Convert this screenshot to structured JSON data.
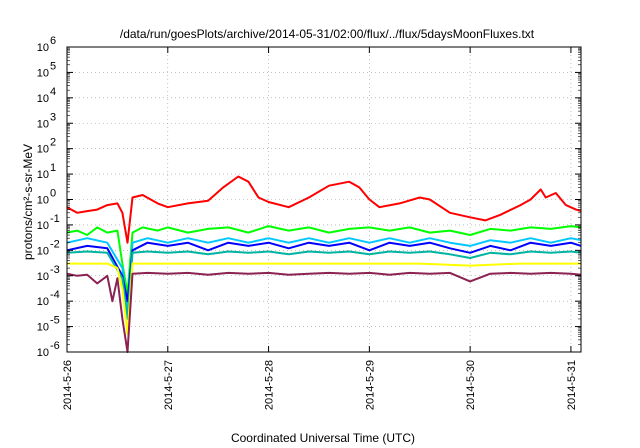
{
  "chart_data": {
    "type": "line",
    "title": "/data/run/goesPlots/archive/2014-05-31/02:00/flux/../flux/5daysMoonFluxes.txt",
    "xlabel": "Coordinated Universal Time (UTC)",
    "ylabel": "protons/cm²-s-sr-MeV",
    "yscale": "log",
    "ylim": [
      1e-06,
      1000000.0
    ],
    "xlim": [
      0,
      5.1
    ],
    "grid": true,
    "x_ticks": [
      {
        "value": 0,
        "label": "2014-5-26"
      },
      {
        "value": 1,
        "label": "2014-5-27"
      },
      {
        "value": 2,
        "label": "2014-5-28"
      },
      {
        "value": 3,
        "label": "2014-5-29"
      },
      {
        "value": 4,
        "label": "2014-5-30"
      },
      {
        "value": 5,
        "label": "2014-5-31"
      }
    ],
    "y_ticks": [
      {
        "value": -6,
        "label": "10",
        "exp": "-6"
      },
      {
        "value": -5,
        "label": "10",
        "exp": "-5"
      },
      {
        "value": -4,
        "label": "10",
        "exp": "-4"
      },
      {
        "value": -3,
        "label": "10",
        "exp": "-3"
      },
      {
        "value": -2,
        "label": "10",
        "exp": "-2"
      },
      {
        "value": -1,
        "label": "10",
        "exp": "-1"
      },
      {
        "value": 0,
        "label": "10",
        "exp": "0"
      },
      {
        "value": 1,
        "label": "10",
        "exp": "1"
      },
      {
        "value": 2,
        "label": "10",
        "exp": "2"
      },
      {
        "value": 3,
        "label": "10",
        "exp": "3"
      },
      {
        "value": 4,
        "label": "10",
        "exp": "4"
      },
      {
        "value": 5,
        "label": "10",
        "exp": "5"
      },
      {
        "value": 6,
        "label": "10",
        "exp": "6"
      }
    ],
    "series": [
      {
        "color": "#ff0000",
        "values": [
          [
            0,
            0.5
          ],
          [
            0.1,
            0.3
          ],
          [
            0.2,
            0.35
          ],
          [
            0.3,
            0.4
          ],
          [
            0.4,
            0.6
          ],
          [
            0.5,
            0.7
          ],
          [
            0.55,
            0.3
          ],
          [
            0.6,
            0.02
          ],
          [
            0.65,
            1.2
          ],
          [
            0.75,
            1.5
          ],
          [
            0.9,
            0.7
          ],
          [
            1.0,
            0.5
          ],
          [
            1.2,
            0.7
          ],
          [
            1.4,
            0.9
          ],
          [
            1.55,
            3.0
          ],
          [
            1.7,
            8.0
          ],
          [
            1.8,
            5.0
          ],
          [
            1.9,
            1.2
          ],
          [
            2.0,
            0.8
          ],
          [
            2.2,
            0.5
          ],
          [
            2.4,
            1.2
          ],
          [
            2.6,
            3.5
          ],
          [
            2.8,
            5.0
          ],
          [
            2.9,
            3.0
          ],
          [
            3.0,
            1.0
          ],
          [
            3.1,
            0.5
          ],
          [
            3.3,
            0.7
          ],
          [
            3.5,
            1.2
          ],
          [
            3.6,
            1.0
          ],
          [
            3.8,
            0.3
          ],
          [
            4.0,
            0.2
          ],
          [
            4.15,
            0.15
          ],
          [
            4.3,
            0.25
          ],
          [
            4.5,
            0.6
          ],
          [
            4.6,
            1.0
          ],
          [
            4.7,
            2.5
          ],
          [
            4.75,
            1.2
          ],
          [
            4.85,
            1.8
          ],
          [
            4.95,
            0.6
          ],
          [
            5.05,
            0.4
          ],
          [
            5.1,
            0.35
          ]
        ]
      },
      {
        "color": "#00ff00",
        "values": [
          [
            0,
            0.05
          ],
          [
            0.1,
            0.06
          ],
          [
            0.2,
            0.04
          ],
          [
            0.3,
            0.08
          ],
          [
            0.4,
            0.05
          ],
          [
            0.5,
            0.06
          ],
          [
            0.55,
            0.003
          ],
          [
            0.6,
            0.0002
          ],
          [
            0.65,
            0.05
          ],
          [
            0.75,
            0.08
          ],
          [
            0.9,
            0.06
          ],
          [
            1.0,
            0.08
          ],
          [
            1.2,
            0.05
          ],
          [
            1.4,
            0.07
          ],
          [
            1.6,
            0.08
          ],
          [
            1.8,
            0.05
          ],
          [
            2.0,
            0.09
          ],
          [
            2.2,
            0.06
          ],
          [
            2.4,
            0.08
          ],
          [
            2.6,
            0.05
          ],
          [
            2.8,
            0.07
          ],
          [
            3.0,
            0.08
          ],
          [
            3.2,
            0.06
          ],
          [
            3.4,
            0.08
          ],
          [
            3.6,
            0.05
          ],
          [
            3.8,
            0.06
          ],
          [
            4.0,
            0.04
          ],
          [
            4.2,
            0.07
          ],
          [
            4.4,
            0.06
          ],
          [
            4.6,
            0.08
          ],
          [
            4.8,
            0.07
          ],
          [
            5.0,
            0.09
          ],
          [
            5.1,
            0.08
          ]
        ]
      },
      {
        "color": "#00c8ff",
        "values": [
          [
            0,
            0.02
          ],
          [
            0.2,
            0.03
          ],
          [
            0.4,
            0.02
          ],
          [
            0.55,
            0.002
          ],
          [
            0.6,
            5e-05
          ],
          [
            0.65,
            0.02
          ],
          [
            0.8,
            0.03
          ],
          [
            1.0,
            0.02
          ],
          [
            1.2,
            0.03
          ],
          [
            1.4,
            0.02
          ],
          [
            1.6,
            0.03
          ],
          [
            1.8,
            0.02
          ],
          [
            2.0,
            0.03
          ],
          [
            2.2,
            0.02
          ],
          [
            2.4,
            0.03
          ],
          [
            2.6,
            0.02
          ],
          [
            2.8,
            0.03
          ],
          [
            3.0,
            0.02
          ],
          [
            3.2,
            0.03
          ],
          [
            3.4,
            0.02
          ],
          [
            3.6,
            0.03
          ],
          [
            3.8,
            0.02
          ],
          [
            4.0,
            0.015
          ],
          [
            4.2,
            0.025
          ],
          [
            4.4,
            0.02
          ],
          [
            4.6,
            0.03
          ],
          [
            4.8,
            0.02
          ],
          [
            5.0,
            0.03
          ],
          [
            5.1,
            0.025
          ]
        ]
      },
      {
        "color": "#0000ff",
        "values": [
          [
            0,
            0.01
          ],
          [
            0.2,
            0.015
          ],
          [
            0.4,
            0.012
          ],
          [
            0.55,
            0.001
          ],
          [
            0.6,
            0.0001
          ],
          [
            0.65,
            0.01
          ],
          [
            0.8,
            0.02
          ],
          [
            1.0,
            0.015
          ],
          [
            1.2,
            0.02
          ],
          [
            1.4,
            0.01
          ],
          [
            1.6,
            0.02
          ],
          [
            1.8,
            0.015
          ],
          [
            2.0,
            0.02
          ],
          [
            2.2,
            0.012
          ],
          [
            2.4,
            0.02
          ],
          [
            2.6,
            0.015
          ],
          [
            2.8,
            0.02
          ],
          [
            3.0,
            0.01
          ],
          [
            3.2,
            0.02
          ],
          [
            3.4,
            0.015
          ],
          [
            3.6,
            0.02
          ],
          [
            3.8,
            0.012
          ],
          [
            4.0,
            0.008
          ],
          [
            4.2,
            0.015
          ],
          [
            4.4,
            0.01
          ],
          [
            4.6,
            0.02
          ],
          [
            4.8,
            0.015
          ],
          [
            5.0,
            0.02
          ],
          [
            5.1,
            0.015
          ]
        ]
      },
      {
        "color": "#00b4a0",
        "values": [
          [
            0,
            0.008
          ],
          [
            0.2,
            0.009
          ],
          [
            0.4,
            0.008
          ],
          [
            0.55,
            0.0008
          ],
          [
            0.6,
            2e-05
          ],
          [
            0.65,
            0.008
          ],
          [
            0.8,
            0.009
          ],
          [
            1.0,
            0.008
          ],
          [
            1.2,
            0.009
          ],
          [
            1.4,
            0.007
          ],
          [
            1.6,
            0.009
          ],
          [
            1.8,
            0.008
          ],
          [
            2.0,
            0.009
          ],
          [
            2.2,
            0.007
          ],
          [
            2.4,
            0.009
          ],
          [
            2.6,
            0.008
          ],
          [
            2.8,
            0.009
          ],
          [
            3.0,
            0.007
          ],
          [
            3.2,
            0.009
          ],
          [
            3.4,
            0.008
          ],
          [
            3.6,
            0.009
          ],
          [
            3.8,
            0.007
          ],
          [
            4.0,
            0.005
          ],
          [
            4.2,
            0.008
          ],
          [
            4.4,
            0.007
          ],
          [
            4.6,
            0.009
          ],
          [
            4.8,
            0.008
          ],
          [
            5.0,
            0.009
          ],
          [
            5.1,
            0.008
          ]
        ]
      },
      {
        "color": "#ffff00",
        "values": [
          [
            0,
            0.003
          ],
          [
            0.2,
            0.003
          ],
          [
            0.4,
            0.003
          ],
          [
            0.5,
            0.002
          ],
          [
            0.55,
            0.0003
          ],
          [
            0.6,
            5e-06
          ],
          [
            0.65,
            0.003
          ],
          [
            0.8,
            0.003
          ],
          [
            1.0,
            0.003
          ],
          [
            1.5,
            0.003
          ],
          [
            2.0,
            0.003
          ],
          [
            2.5,
            0.003
          ],
          [
            3.0,
            0.003
          ],
          [
            3.5,
            0.003
          ],
          [
            4.0,
            0.0025
          ],
          [
            4.5,
            0.003
          ],
          [
            5.0,
            0.003
          ],
          [
            5.1,
            0.003
          ]
        ]
      },
      {
        "color": "#8b2252",
        "values": [
          [
            0,
            0.0012
          ],
          [
            0.1,
            0.001
          ],
          [
            0.2,
            0.0011
          ],
          [
            0.3,
            0.0005
          ],
          [
            0.4,
            0.001
          ],
          [
            0.45,
            0.0001
          ],
          [
            0.5,
            0.0008
          ],
          [
            0.55,
            2e-05
          ],
          [
            0.6,
            1e-06
          ],
          [
            0.65,
            0.0012
          ],
          [
            0.8,
            0.0013
          ],
          [
            1.0,
            0.0012
          ],
          [
            1.2,
            0.0013
          ],
          [
            1.4,
            0.0011
          ],
          [
            1.6,
            0.0013
          ],
          [
            1.8,
            0.0012
          ],
          [
            2.0,
            0.0013
          ],
          [
            2.2,
            0.0011
          ],
          [
            2.4,
            0.0012
          ],
          [
            2.6,
            0.0013
          ],
          [
            2.8,
            0.0012
          ],
          [
            3.0,
            0.0013
          ],
          [
            3.2,
            0.0011
          ],
          [
            3.4,
            0.0013
          ],
          [
            3.6,
            0.0012
          ],
          [
            3.8,
            0.0013
          ],
          [
            4.0,
            0.0006
          ],
          [
            4.2,
            0.0012
          ],
          [
            4.4,
            0.0013
          ],
          [
            4.6,
            0.0012
          ],
          [
            4.8,
            0.0013
          ],
          [
            5.0,
            0.0012
          ],
          [
            5.1,
            0.0011
          ]
        ]
      }
    ]
  }
}
